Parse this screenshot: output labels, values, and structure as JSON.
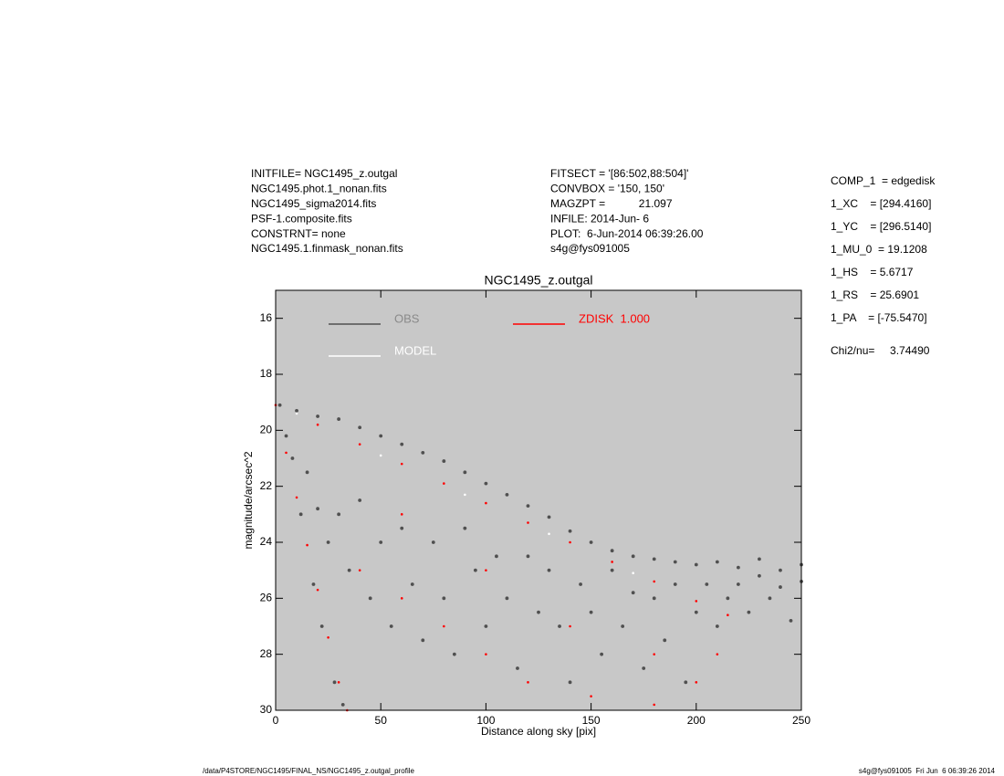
{
  "header": {
    "left": [
      "INITFILE= NGC1495_z.outgal",
      "NGC1495.phot.1_nonan.fits",
      "NGC1495_sigma2014.fits",
      "PSF-1.composite.fits",
      "CONSTRNT= none",
      "NGC1495.1.finmask_nonan.fits"
    ],
    "middle": [
      "FITSECT = '[86:502,88:504]'",
      "CONVBOX = '150, 150'",
      "MAGZPT =           21.097",
      "INFILE: 2014-Jun- 6",
      "PLOT:  6-Jun-2014 06:39:26.00",
      "s4g@fys091005"
    ],
    "right": [
      "COMP_1  = edgedisk",
      "1_XC    = [294.4160]",
      "1_YC    = [296.5140]",
      "1_MU_0  = 19.1208",
      "1_HS    = 5.6717",
      "1_RS    = 25.6901",
      "1_PA    = [-75.5470]"
    ],
    "chi": "Chi2/nu=     3.74490"
  },
  "footer": {
    "left": "/data/P4STORE/NGC1495/FINAL_NS/NGC1495_z.outgal_profile",
    "right": "s4g@fys091005  Fri Jun  6 06:39:26 2014"
  },
  "chart_data": {
    "type": "scatter",
    "title": "NGC1495_z.outgal",
    "xlabel": "Distance along sky [pix]",
    "ylabel": "magnitude/arcsec^2",
    "xlim": [
      0,
      250
    ],
    "xticks": [
      0,
      50,
      100,
      150,
      200,
      250
    ],
    "ylim": [
      30,
      15
    ],
    "yticks": [
      16,
      18,
      20,
      22,
      24,
      26,
      28,
      30
    ],
    "background": "#c8c8c8",
    "legend": "upper left",
    "series": [
      {
        "name": "OBS",
        "color": "#505050",
        "x": [
          2,
          10,
          20,
          30,
          40,
          50,
          60,
          70,
          80,
          90,
          100,
          110,
          120,
          130,
          140,
          150,
          160,
          170,
          180,
          190,
          200,
          210,
          220,
          230,
          240,
          250,
          15,
          20,
          25,
          30,
          35,
          40,
          45,
          50,
          55,
          60,
          65,
          70,
          75,
          80,
          85,
          90,
          95,
          100,
          105,
          110,
          115,
          120,
          125,
          130,
          135,
          140,
          145,
          150,
          155,
          160,
          165,
          170,
          175,
          180,
          185,
          190,
          195,
          200,
          205,
          210,
          215,
          220,
          225,
          230,
          235,
          240,
          245,
          250,
          8,
          12,
          18,
          22,
          28,
          32,
          5
        ],
        "values": [
          19.1,
          19.3,
          19.5,
          19.6,
          19.9,
          20.2,
          20.5,
          20.8,
          21.1,
          21.5,
          21.9,
          22.3,
          22.7,
          23.1,
          23.6,
          24.0,
          24.3,
          24.5,
          24.6,
          24.7,
          24.8,
          24.7,
          24.9,
          24.6,
          25.0,
          24.8,
          21.5,
          22.8,
          24,
          23,
          25,
          22.5,
          26,
          24,
          27,
          23.5,
          25.5,
          27.5,
          24,
          26,
          28,
          23.5,
          25,
          27,
          24.5,
          26,
          28.5,
          24.5,
          26.5,
          25,
          27,
          29,
          25.5,
          26.5,
          28,
          25,
          27,
          25.8,
          28.5,
          26,
          27.5,
          25.5,
          29,
          26.5,
          25.5,
          27,
          26,
          25.5,
          26.5,
          25.2,
          26,
          25.6,
          26.8,
          25.4,
          21,
          23,
          25.5,
          27,
          29,
          29.8,
          20.2
        ]
      },
      {
        "name": "MODEL",
        "color": "#ffffff",
        "x": [
          10,
          50,
          90,
          130,
          170
        ],
        "values": [
          19.4,
          20.9,
          22.3,
          23.7,
          25.1
        ]
      },
      {
        "name": "ZDISK  1.000",
        "color": "#ff0000",
        "x": [
          0,
          20,
          40,
          60,
          80,
          100,
          120,
          140,
          160,
          180,
          200,
          215,
          5,
          10,
          15,
          20,
          25,
          30,
          34,
          40,
          60,
          80,
          100,
          120,
          150,
          180,
          200,
          60,
          100,
          140,
          180,
          210
        ],
        "values": [
          19.1,
          19.8,
          20.5,
          21.2,
          21.9,
          22.6,
          23.3,
          24,
          24.7,
          25.4,
          26.1,
          26.6,
          20.8,
          22.4,
          24.1,
          25.7,
          27.4,
          29,
          30,
          25,
          26,
          27,
          28,
          29,
          29.5,
          29.8,
          29,
          23,
          25,
          27,
          28,
          28
        ]
      }
    ]
  }
}
